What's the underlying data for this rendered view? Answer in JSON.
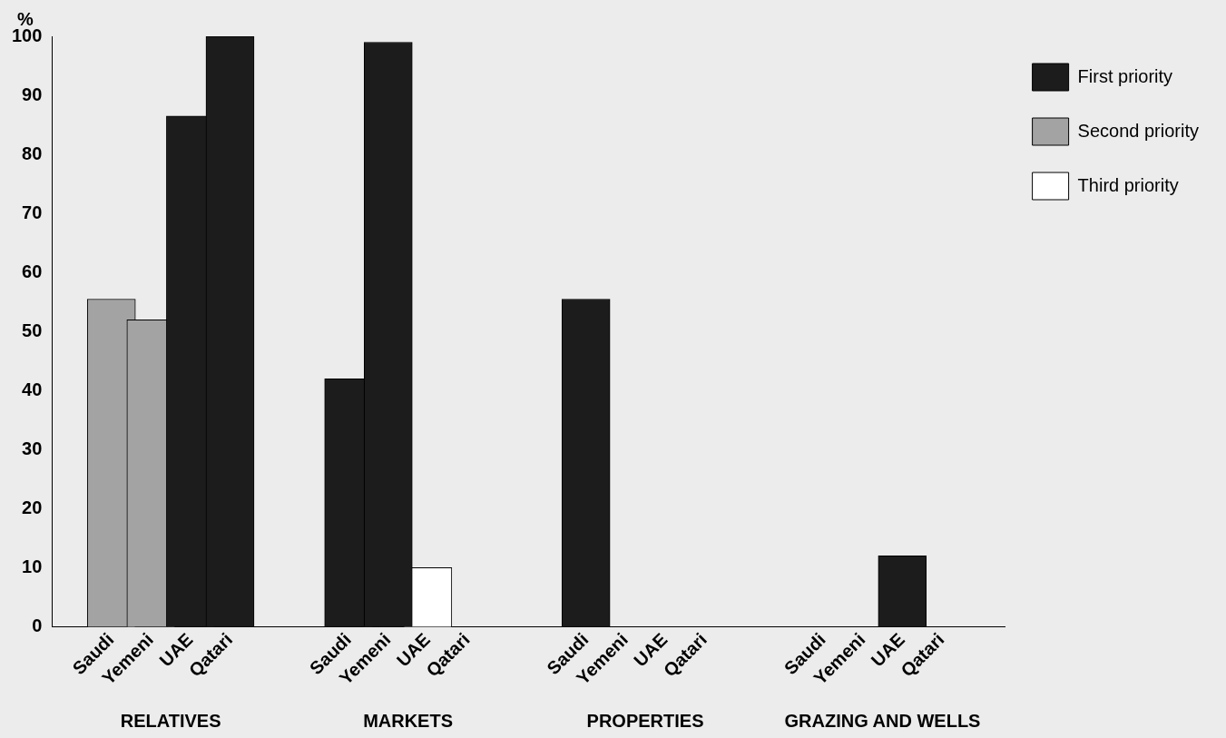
{
  "chart_data": {
    "type": "bar",
    "stacked": true,
    "ylabel": "%",
    "categories": [
      "Saudi",
      "Yemeni",
      "UAE",
      "Qatari",
      "Saudi",
      "Yemeni",
      "UAE",
      "Qatari",
      "Saudi",
      "Yemeni",
      "UAE",
      "Qatari",
      "Saudi",
      "Yemeni",
      "UAE",
      "Qatari"
    ],
    "annotations": [
      "RELATIVES",
      "MARKETS",
      "PROPERTIES",
      "GRAZING AND WELLS"
    ],
    "series": [
      {
        "name": "First priority",
        "color": "#1c1c1c",
        "values": [
          null,
          null,
          86.5,
          100,
          42,
          99,
          null,
          null,
          55.5,
          null,
          null,
          null,
          null,
          null,
          12,
          null
        ]
      },
      {
        "name": "Second priority",
        "color": "#a3a3a3",
        "values": [
          55.5,
          52,
          null,
          null,
          null,
          null,
          null,
          null,
          null,
          null,
          null,
          null,
          null,
          null,
          null,
          null
        ]
      },
      {
        "name": "Third priority",
        "color": "#ffffff",
        "values": [
          null,
          null,
          null,
          null,
          null,
          null,
          10,
          null,
          null,
          null,
          null,
          null,
          null,
          null,
          null,
          null
        ]
      }
    ],
    "ylim": [
      0,
      100
    ],
    "yticks": [
      0,
      10,
      20,
      30,
      40,
      50,
      60,
      70,
      80,
      90,
      100
    ],
    "grid": false,
    "legend": "right"
  }
}
